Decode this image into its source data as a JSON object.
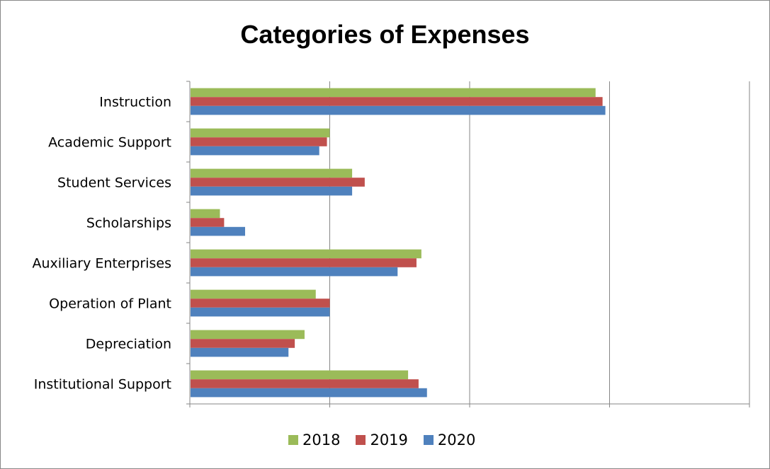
{
  "chart_data": {
    "type": "bar",
    "orientation": "horizontal",
    "title": "Categories of Expenses",
    "categories": [
      "Instruction",
      "Academic Support",
      "Student Services",
      "Scholarships",
      "Auxiliary Enterprises",
      "Operation of Plant",
      "Depreciation",
      "Institutional Support"
    ],
    "series": [
      {
        "name": "2018",
        "color": "#9BBB59",
        "values": [
          58.0,
          20.0,
          23.2,
          4.3,
          33.1,
          18.0,
          16.4,
          31.2
        ]
      },
      {
        "name": "2019",
        "color": "#C0504D",
        "values": [
          59.0,
          19.6,
          25.0,
          4.9,
          32.4,
          20.0,
          15.0,
          32.7
        ]
      },
      {
        "name": "2020",
        "color": "#4F81BD",
        "values": [
          59.4,
          18.5,
          23.2,
          7.9,
          29.7,
          20.0,
          14.1,
          33.9
        ]
      }
    ],
    "xlim": [
      0,
      80
    ],
    "x_tick_labels_shown": false,
    "grid": "vertical major gridlines",
    "legend_position": "bottom"
  }
}
